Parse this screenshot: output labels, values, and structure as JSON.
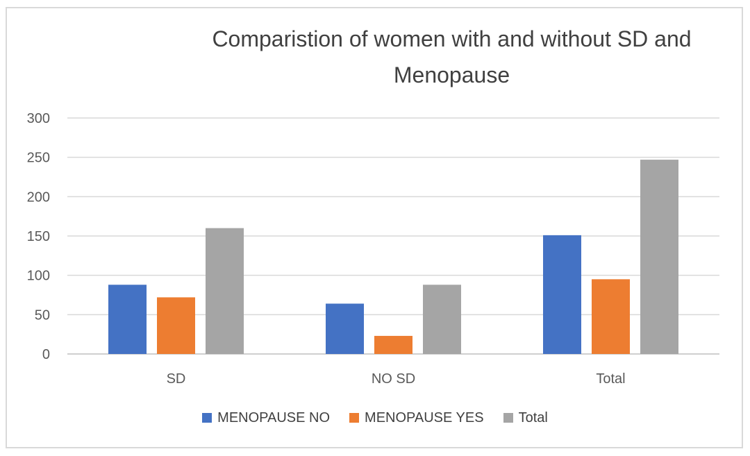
{
  "chart_data": {
    "type": "bar",
    "title": "Comparistion of women with and without SD and Menopause",
    "categories": [
      "SD",
      "NO SD",
      "Total"
    ],
    "series": [
      {
        "name": "MENOPAUSE NO",
        "values": [
          88,
          64,
          151
        ],
        "color": "#4472C4"
      },
      {
        "name": "MENOPAUSE YES",
        "values": [
          72,
          23,
          95
        ],
        "color": "#ED7D31"
      },
      {
        "name": "Total",
        "values": [
          160,
          88,
          247
        ],
        "color": "#A5A5A5"
      }
    ],
    "yticks": [
      0,
      50,
      100,
      150,
      200,
      250,
      300
    ],
    "ylim": [
      0,
      300
    ],
    "grid": true,
    "legend_position": "bottom"
  }
}
